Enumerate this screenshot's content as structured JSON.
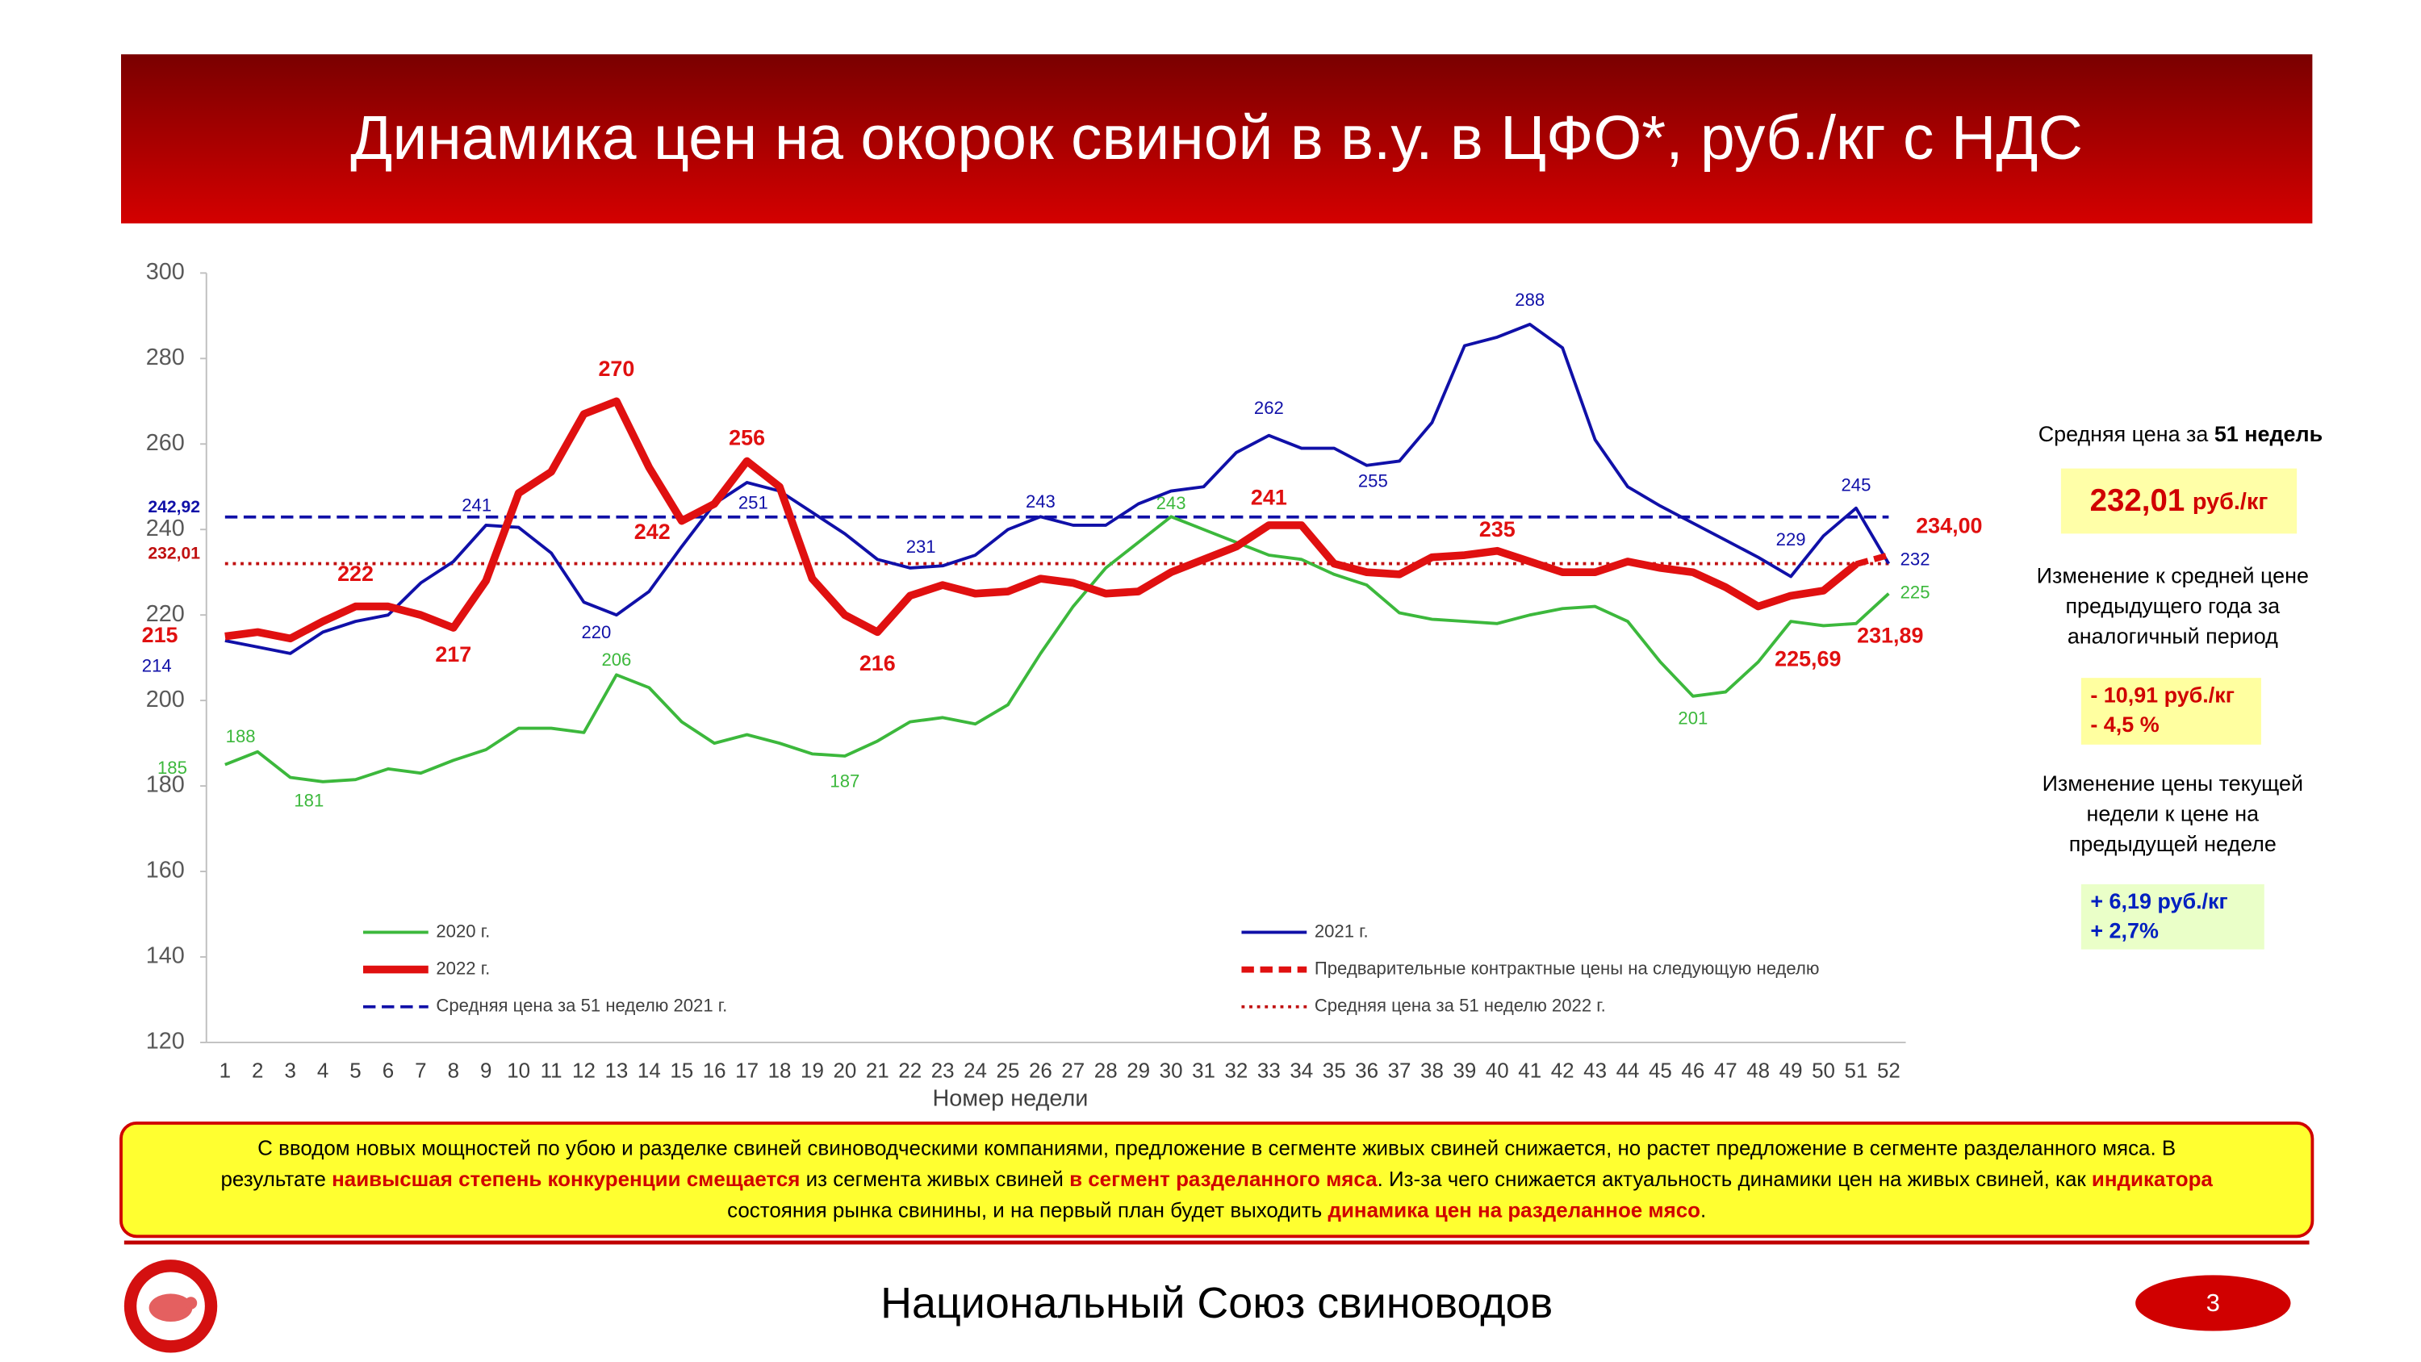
{
  "header": {
    "title": "Динамика цен на окорок свиной в в.у. в ЦФО*, руб./кг с НДС"
  },
  "chart_data": {
    "type": "line",
    "xlabel": "Номер недели",
    "categories": [
      "1",
      "2",
      "3",
      "4",
      "5",
      "6",
      "7",
      "8",
      "9",
      "10",
      "11",
      "12",
      "13",
      "14",
      "15",
      "16",
      "17",
      "18",
      "19",
      "20",
      "21",
      "22",
      "23",
      "24",
      "25",
      "26",
      "27",
      "28",
      "29",
      "30",
      "31",
      "32",
      "33",
      "34",
      "35",
      "36",
      "37",
      "38",
      "39",
      "40",
      "41",
      "42",
      "43",
      "44",
      "45",
      "46",
      "47",
      "48",
      "49",
      "50",
      "51",
      "52"
    ],
    "ylim": [
      120,
      300
    ],
    "yticks": [
      120,
      140,
      160,
      180,
      200,
      220,
      240,
      260,
      280,
      300
    ],
    "grid": false,
    "legend": "bottom-inside",
    "series": [
      {
        "name": "2020 г.",
        "color": "#3cb83c",
        "style": "solid",
        "width": 2,
        "values": [
          185,
          188,
          182,
          181,
          181.5,
          184,
          183,
          186,
          188.5,
          193.5,
          193.5,
          192.5,
          206,
          203,
          195,
          190,
          192,
          190,
          187.5,
          187,
          190.5,
          195,
          196,
          194.5,
          199,
          211,
          222,
          231,
          237,
          243,
          240,
          237,
          234,
          233,
          229.5,
          227,
          220.5,
          219,
          218.5,
          218,
          220,
          221.5,
          222,
          218.5,
          209,
          201,
          202,
          209,
          218.5,
          217.5,
          218,
          225
        ],
        "value_labels": [
          "185",
          "188",
          null,
          "181",
          null,
          null,
          null,
          null,
          null,
          null,
          null,
          null,
          "206",
          null,
          null,
          null,
          null,
          null,
          null,
          "187",
          null,
          null,
          null,
          null,
          null,
          null,
          null,
          null,
          null,
          "243",
          null,
          null,
          null,
          null,
          null,
          null,
          null,
          null,
          null,
          null,
          null,
          null,
          null,
          null,
          null,
          "201",
          null,
          null,
          null,
          null,
          null,
          "225"
        ]
      },
      {
        "name": "2021 г.",
        "color": "#1010a8",
        "style": "solid",
        "width": 2,
        "values": [
          214,
          212.5,
          211,
          216,
          218.5,
          220,
          227.5,
          232.5,
          241,
          240.5,
          234.5,
          223,
          220,
          225.5,
          236,
          246,
          251,
          249,
          244,
          239,
          233,
          231,
          231.5,
          234,
          240,
          243,
          241,
          241,
          246,
          249,
          250,
          258,
          262,
          259,
          259,
          255,
          256,
          265,
          283,
          285,
          288,
          282.5,
          261,
          250,
          245.5,
          241.5,
          237.5,
          233.5,
          229,
          238.5,
          245,
          232
        ],
        "value_labels": [
          "214",
          null,
          null,
          null,
          null,
          null,
          null,
          null,
          "241",
          null,
          null,
          null,
          "220",
          null,
          null,
          null,
          "251",
          null,
          null,
          null,
          null,
          "231",
          null,
          null,
          null,
          "243",
          null,
          null,
          null,
          null,
          null,
          null,
          "262",
          null,
          null,
          "255",
          null,
          null,
          null,
          null,
          "288",
          null,
          null,
          null,
          null,
          null,
          null,
          null,
          "229",
          null,
          "245",
          "232"
        ]
      },
      {
        "name": "2022 г.",
        "color": "#e01010",
        "style": "solid",
        "width": 5,
        "values": [
          215,
          216,
          214.5,
          218.5,
          222,
          222,
          220,
          217,
          228,
          248.5,
          253.5,
          267,
          270,
          254.5,
          242,
          246,
          256,
          250,
          228.5,
          220,
          216,
          224.5,
          227,
          225,
          225.5,
          228.5,
          227.5,
          225,
          225.5,
          230,
          233,
          236,
          241,
          241,
          232,
          230,
          229.5,
          233.5,
          234,
          235,
          232.5,
          230,
          230,
          232.5,
          231,
          230,
          226.5,
          222,
          224.5,
          225.69,
          231.89,
          null
        ],
        "value_labels": [
          "215",
          null,
          null,
          null,
          "222",
          null,
          null,
          "217",
          null,
          null,
          null,
          null,
          "270",
          null,
          "242",
          null,
          "256",
          null,
          null,
          null,
          "216",
          null,
          null,
          null,
          null,
          null,
          null,
          null,
          null,
          null,
          null,
          null,
          "241",
          null,
          null,
          null,
          null,
          null,
          null,
          "235",
          null,
          null,
          null,
          null,
          null,
          null,
          null,
          null,
          null,
          "225,69",
          "231,89",
          null
        ]
      },
      {
        "name": "Предварительные контрактные цены на следующую неделю",
        "color": "#e01010",
        "style": "dashed",
        "width": 4,
        "values": [
          null,
          null,
          null,
          null,
          null,
          null,
          null,
          null,
          null,
          null,
          null,
          null,
          null,
          null,
          null,
          null,
          null,
          null,
          null,
          null,
          null,
          null,
          null,
          null,
          null,
          null,
          null,
          null,
          null,
          null,
          null,
          null,
          null,
          null,
          null,
          null,
          null,
          null,
          null,
          null,
          null,
          null,
          null,
          null,
          null,
          null,
          null,
          null,
          null,
          null,
          231.89,
          234
        ],
        "value_labels": [
          null,
          null,
          null,
          null,
          null,
          null,
          null,
          null,
          null,
          null,
          null,
          null,
          null,
          null,
          null,
          null,
          null,
          null,
          null,
          null,
          null,
          null,
          null,
          null,
          null,
          null,
          null,
          null,
          null,
          null,
          null,
          null,
          null,
          null,
          null,
          null,
          null,
          null,
          null,
          null,
          null,
          null,
          null,
          null,
          null,
          null,
          null,
          null,
          null,
          null,
          null,
          "234,00"
        ]
      }
    ],
    "reference_lines": [
      {
        "name": "Средняя цена за 51 неделю 2021 г.",
        "color": "#1010a8",
        "style": "dashed",
        "value": 242.92,
        "label": "242,92"
      },
      {
        "name": "Средняя цена за 51 неделю 2022 г.",
        "color": "#c01010",
        "style": "dotted",
        "value": 232.01,
        "label": "232,01"
      }
    ]
  },
  "side_panel": {
    "avg_label": [
      {
        "text": "Средняя цена за ",
        "bold": false
      },
      {
        "text": "51 недель",
        "bold": true
      }
    ],
    "avg_value": "232,01",
    "avg_unit": "руб./кг",
    "change_year_label": [
      "Изменение к средней цене",
      "предыдущего года за",
      "аналогичный период"
    ],
    "change_year_values": [
      "- 10,91 руб./кг",
      "- 4,5 %"
    ],
    "change_week_label": [
      "Изменение цены текущей",
      "недели к цене на",
      "предыдущей неделе"
    ],
    "change_week_values": [
      "+ 6,19 руб./кг",
      "+ 2,7%"
    ]
  },
  "note": {
    "lines": [
      [
        {
          "text": "С вводом новых мощностей по убою и разделке свиней свиноводческими компаниями, предложение в сегменте живых свиней снижается, но растет предложение в сегменте разделанного мяса.  В",
          "highlight": false
        }
      ],
      [
        {
          "text": "результате ",
          "highlight": false
        },
        {
          "text": "наивысшая степень конкуренции смещается",
          "highlight": true
        },
        {
          "text": " из сегмента живых свиней ",
          "highlight": false
        },
        {
          "text": "в сегмент разделанного мяса",
          "highlight": true
        },
        {
          "text": ". Из-за чего снижается актуальность динамики цен на живых свиней, как ",
          "highlight": false
        },
        {
          "text": "индикатора",
          "highlight": true
        }
      ],
      [
        {
          "text": "состояния рынка свинины, и на первый план будет выходить ",
          "highlight": false
        },
        {
          "text": "динамика цен на разделанное мясо",
          "highlight": true
        },
        {
          "text": ".",
          "highlight": false
        }
      ]
    ]
  },
  "footer": {
    "org": "Национальный Союз свиноводов",
    "page": "3"
  }
}
